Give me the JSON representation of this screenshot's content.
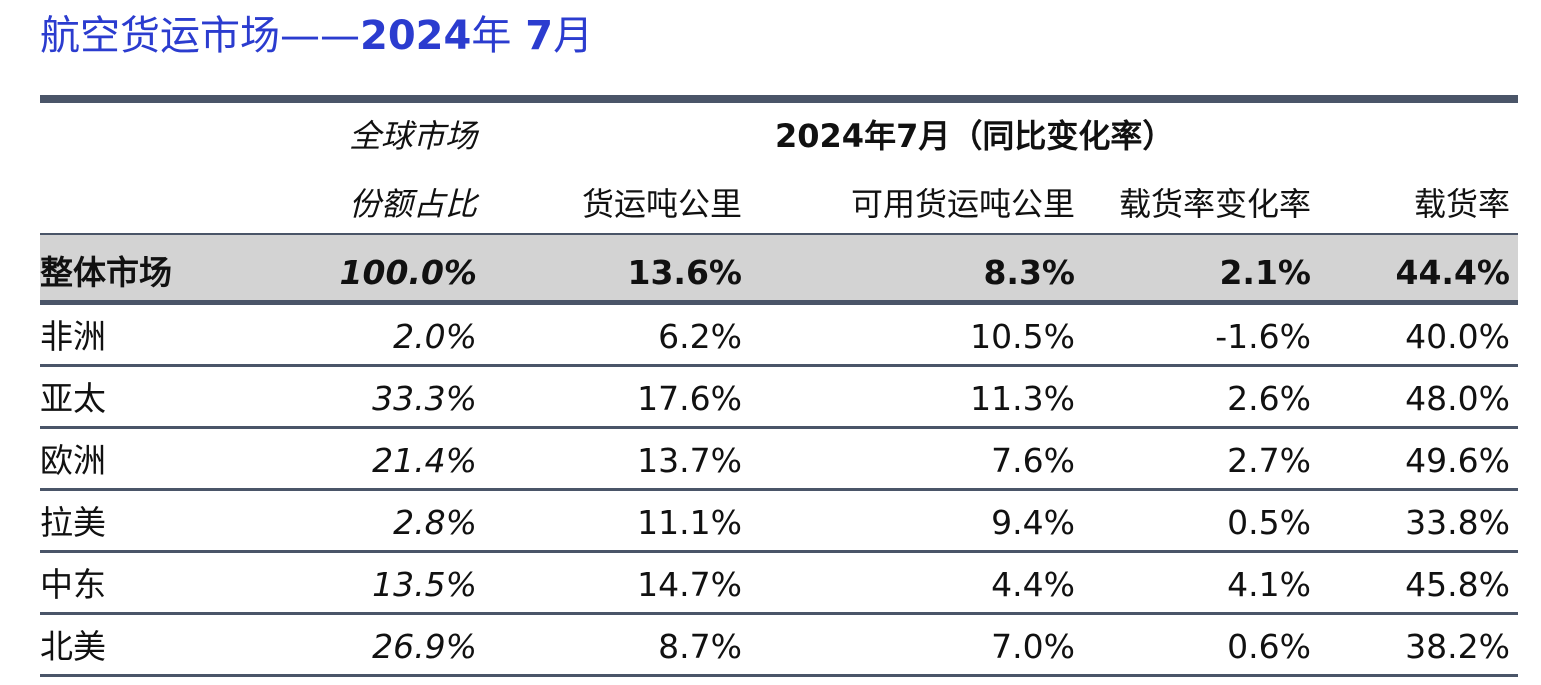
{
  "title": {
    "prefix": "航空货运市场——",
    "year": "2024",
    "year_unit": "年",
    "month": " 7",
    "month_unit": "月"
  },
  "colors": {
    "title": "#2b3ccf",
    "rule": "#4a5568",
    "total_bg": "#d3d3d3"
  },
  "header": {
    "share_line1": "全球市场",
    "share_line2": "份额占比",
    "period_label": "2024年7月（同比变化率）",
    "columns": [
      "货运吨公里",
      "可用货运吨公里",
      "载货率变化率",
      "载货率"
    ]
  },
  "total": {
    "region": "整体市场",
    "share": "100.0%",
    "ctk": "13.6%",
    "actk": "8.3%",
    "lf_change": "2.1%",
    "lf": "44.4%"
  },
  "rows": [
    {
      "region": "非洲",
      "share": "2.0%",
      "ctk": "6.2%",
      "actk": "10.5%",
      "lf_change": "-1.6%",
      "lf": "40.0%"
    },
    {
      "region": "亚太",
      "share": "33.3%",
      "ctk": "17.6%",
      "actk": "11.3%",
      "lf_change": "2.6%",
      "lf": "48.0%"
    },
    {
      "region": "欧洲",
      "share": "21.4%",
      "ctk": "13.7%",
      "actk": "7.6%",
      "lf_change": "2.7%",
      "lf": "49.6%"
    },
    {
      "region": "拉美",
      "share": "2.8%",
      "ctk": "11.1%",
      "actk": "9.4%",
      "lf_change": "0.5%",
      "lf": "33.8%"
    },
    {
      "region": "中东",
      "share": "13.5%",
      "ctk": "14.7%",
      "actk": "4.4%",
      "lf_change": "4.1%",
      "lf": "45.8%"
    },
    {
      "region": "北美",
      "share": "26.9%",
      "ctk": "8.7%",
      "actk": "7.0%",
      "lf_change": "0.6%",
      "lf": "38.2%"
    }
  ]
}
